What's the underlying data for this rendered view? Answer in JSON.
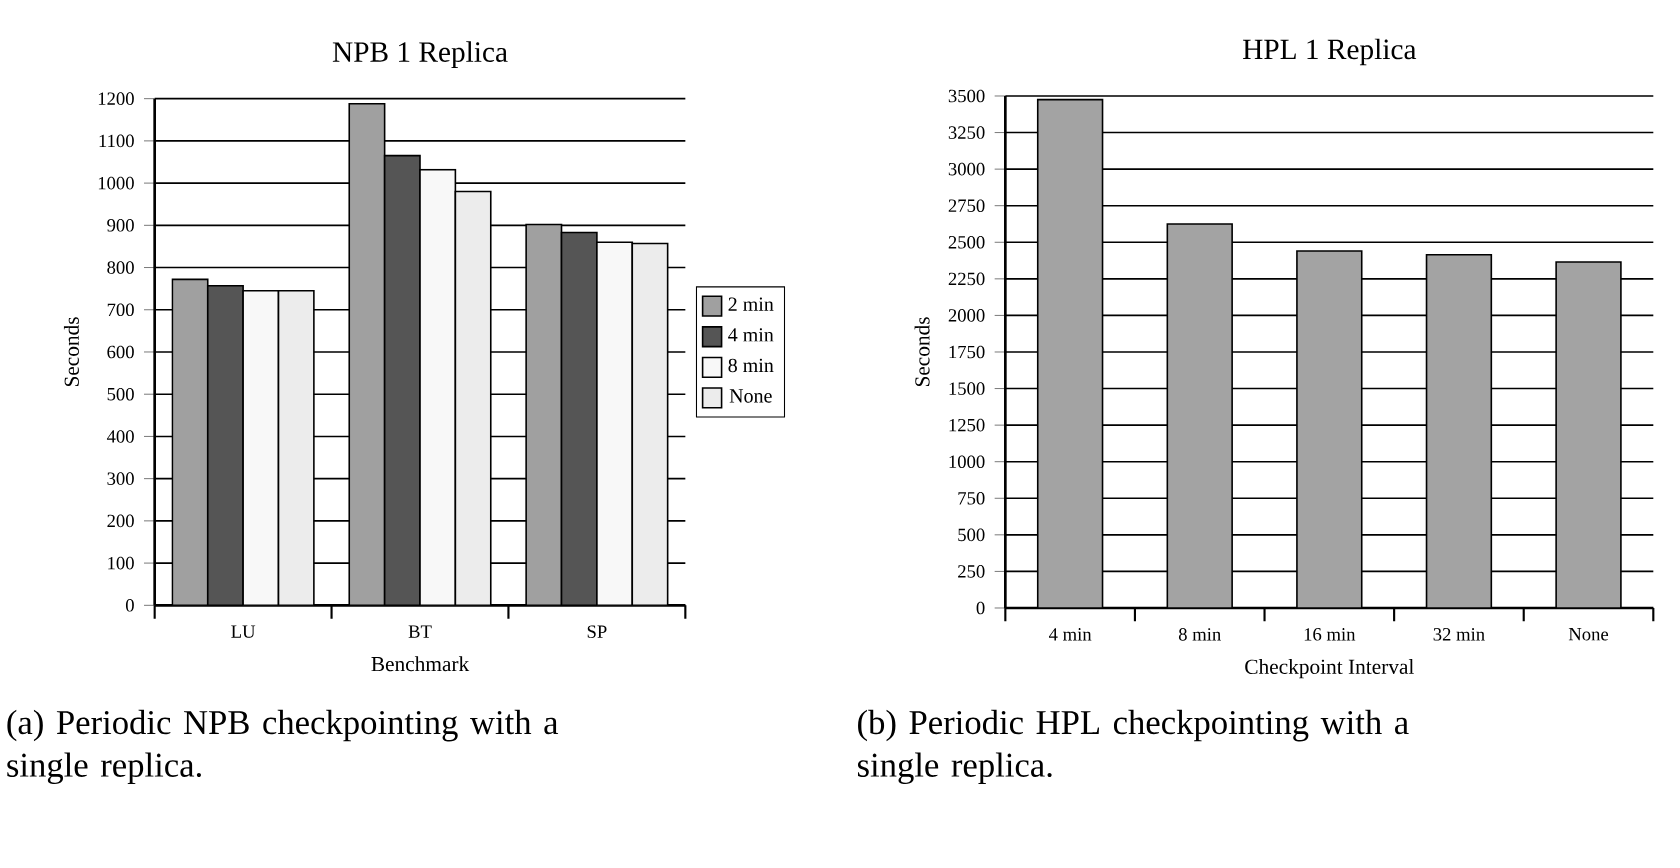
{
  "chart_data": [
    {
      "type": "bar",
      "title": "NPB 1 Replica",
      "xlabel": "Benchmark",
      "ylabel": "Seconds",
      "categories": [
        "LU",
        "BT",
        "SP"
      ],
      "series": [
        {
          "name": "2 min",
          "color": "#a0a0a0",
          "values": [
            772,
            1188,
            902
          ]
        },
        {
          "name": "4 min",
          "color": "#555555",
          "values": [
            757,
            1065,
            883
          ]
        },
        {
          "name": "8 min",
          "color": "#f8f8f8",
          "values": [
            745,
            1032,
            860
          ]
        },
        {
          "name": "None",
          "color": "#ececec",
          "values": [
            745,
            980,
            857
          ]
        }
      ],
      "ylim": [
        0,
        1200
      ],
      "yticks": [
        0,
        100,
        200,
        300,
        400,
        500,
        600,
        700,
        800,
        900,
        1000,
        1100,
        1200
      ],
      "grid": "y",
      "legend": "right",
      "annotations": [
        "(a) Periodic NPB checkpointing with a single replica."
      ]
    },
    {
      "type": "bar",
      "title": "HPL 1 Replica",
      "xlabel": "Checkpoint Interval",
      "ylabel": "Seconds",
      "categories": [
        "4 min",
        "8 min",
        "16 min",
        "32 min",
        "None"
      ],
      "values": [
        3475,
        2625,
        2440,
        2415,
        2365
      ],
      "color": "#a3a3a3",
      "ylim": [
        0,
        3500
      ],
      "yticks": [
        0,
        250,
        500,
        750,
        1000,
        1250,
        1500,
        1750,
        2000,
        2250,
        2500,
        2750,
        3000,
        3250,
        3500
      ],
      "grid": "y",
      "annotations": [
        "(b) Periodic HPL checkpointing with a single replica."
      ]
    }
  ]
}
